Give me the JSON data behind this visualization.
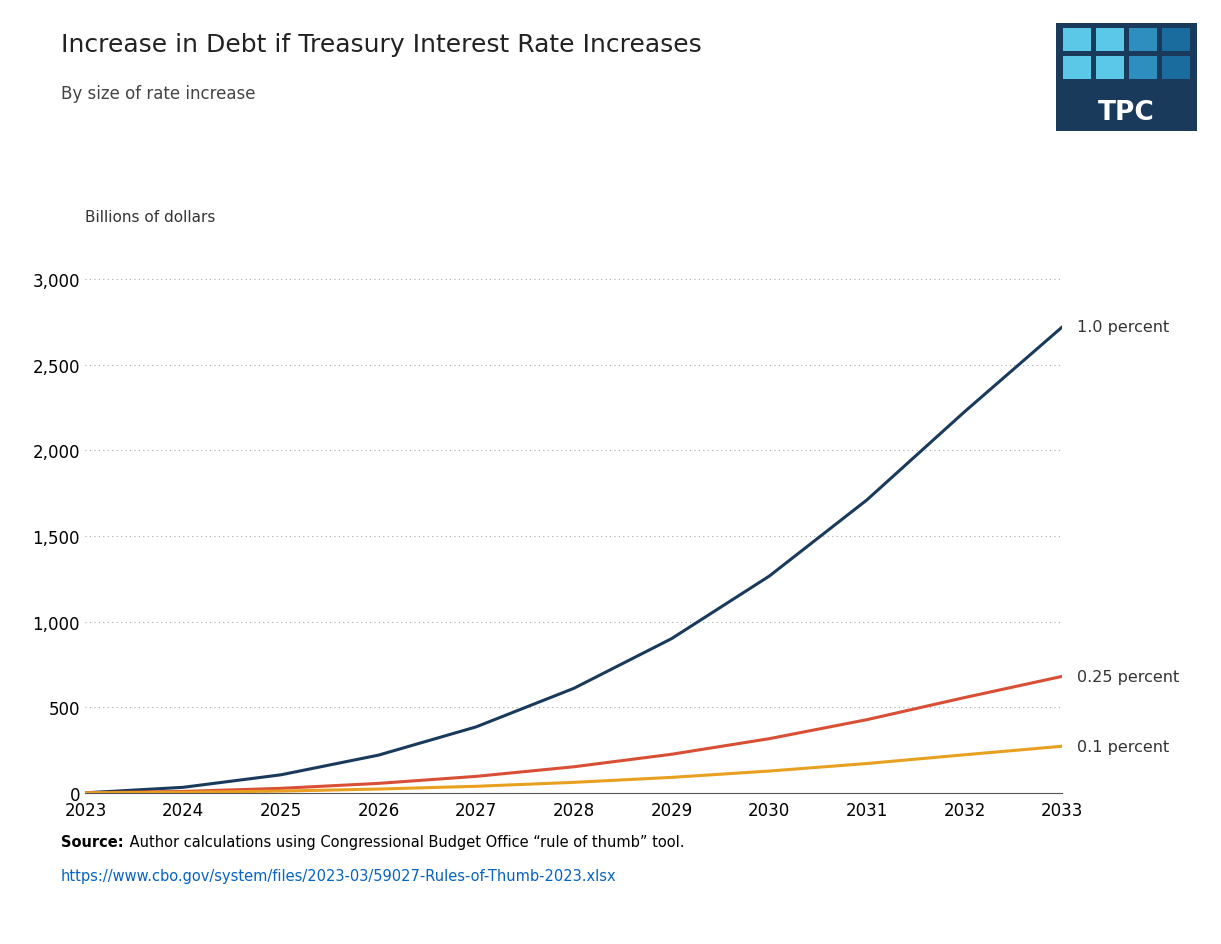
{
  "title": "Increase in Debt if Treasury Interest Rate Increases",
  "subtitle": "By size of rate increase",
  "ylabel": "Billions of dollars",
  "years": [
    2023,
    2024,
    2025,
    2026,
    2027,
    2028,
    2029,
    2030,
    2031,
    2032,
    2033
  ],
  "series_order": [
    "1.0 percent",
    "0.25 percent",
    "0.1 percent"
  ],
  "series": {
    "1.0 percent": {
      "color": "#1a3a5c",
      "values": [
        0,
        32,
        105,
        220,
        385,
        610,
        900,
        1265,
        1710,
        2225,
        2720
      ]
    },
    "0.25 percent": {
      "color": "#d94f35",
      "values": [
        0,
        8,
        26,
        55,
        96,
        152,
        225,
        316,
        427,
        556,
        680
      ]
    },
    "0.1 percent": {
      "color": "#e8a020",
      "values": [
        0,
        3,
        10,
        22,
        38,
        61,
        90,
        127,
        171,
        222,
        272
      ]
    }
  },
  "ylim": [
    0,
    3200
  ],
  "yticks": [
    0,
    500,
    1000,
    1500,
    2000,
    2500,
    3000
  ],
  "xlim": [
    2023,
    2033
  ],
  "source_bold": "Source:",
  "source_text": " Author calculations using Congressional Budget Office “rule of thumb” tool.",
  "source_url": "https://www.cbo.gov/system/files/2023-03/59027-Rules-of-Thumb-2023.xlsx",
  "tpc_bg_color": "#1a3a5c",
  "tpc_tile_light": "#5bc8e8",
  "tpc_tile_mid": "#2e8fbf",
  "tpc_tile_dark": "#1a6b9e",
  "background_color": "#ffffff"
}
